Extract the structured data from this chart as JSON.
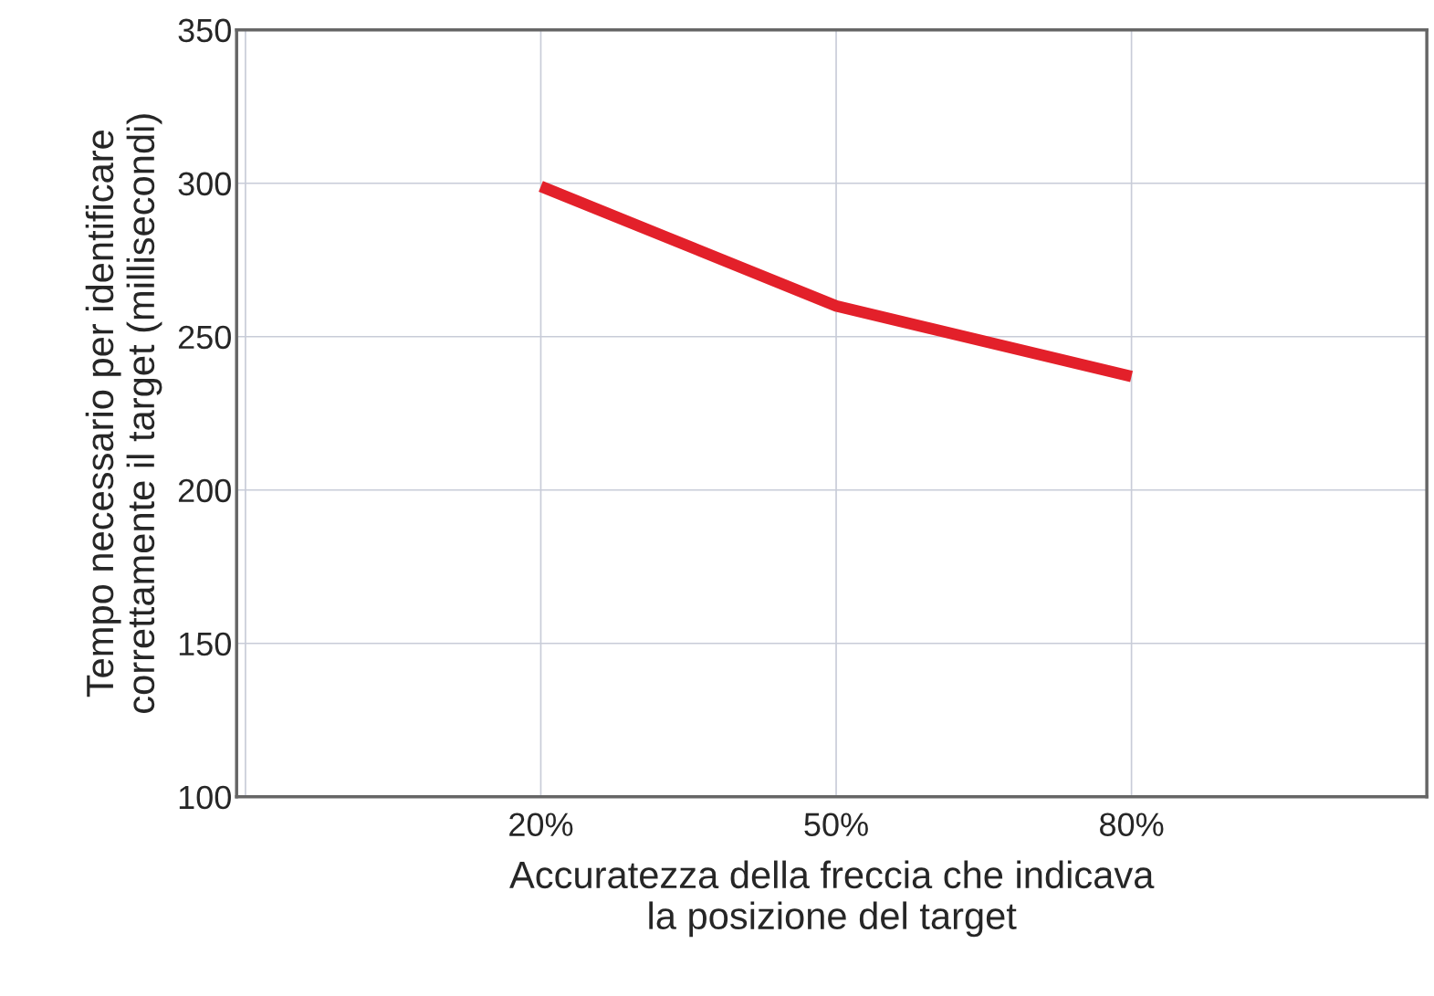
{
  "chart_data": {
    "type": "line",
    "xlabel": "Accuratezza della freccia che indicava\nla posizione del target",
    "ylabel": "Tempo necessario per identificare\ncorrettamente il target (millisecondi)",
    "categories": [
      null,
      "20%",
      "50%",
      "80%",
      null
    ],
    "series": [
      {
        "color": "#e3202a",
        "values": [
          null,
          299,
          260,
          237,
          null
        ]
      }
    ],
    "ylim": [
      100,
      350
    ],
    "yticks": [
      100,
      150,
      200,
      250,
      300,
      350
    ],
    "grid": true,
    "marker": "none",
    "line_style": "solid"
  }
}
